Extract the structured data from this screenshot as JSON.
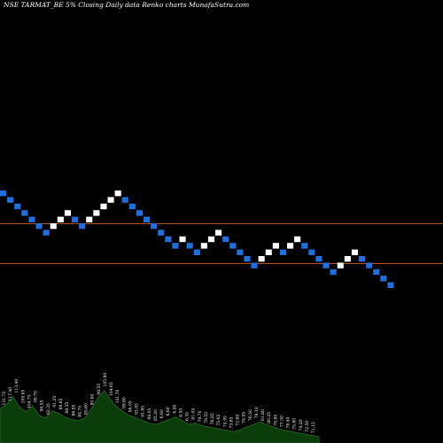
{
  "title": "NSE TARMAT_BE 5% Closing Daily data Renko charts MunafaSutra.com",
  "chart_data": {
    "type": "renko",
    "brick_percent": 5,
    "colors": {
      "background": "#000000",
      "up_brick": "#ffffff",
      "down_brick": "#1e6fe0",
      "reference_line": "#b4531e",
      "volume_fill": "#0a3d0a",
      "label_text": "#ffffff"
    },
    "reference_lines": [
      0.505,
      0.595
    ],
    "bricks": [
      {
        "dir": "down",
        "level": 0
      },
      {
        "dir": "down",
        "level": 1
      },
      {
        "dir": "down",
        "level": 2
      },
      {
        "dir": "down",
        "level": 3
      },
      {
        "dir": "down",
        "level": 4
      },
      {
        "dir": "down",
        "level": 5
      },
      {
        "dir": "down",
        "level": 6
      },
      {
        "dir": "up",
        "level": 5
      },
      {
        "dir": "up",
        "level": 4
      },
      {
        "dir": "up",
        "level": 3
      },
      {
        "dir": "down",
        "level": 4
      },
      {
        "dir": "down",
        "level": 5
      },
      {
        "dir": "up",
        "level": 4
      },
      {
        "dir": "up",
        "level": 3
      },
      {
        "dir": "up",
        "level": 2
      },
      {
        "dir": "up",
        "level": 1
      },
      {
        "dir": "up",
        "level": 0
      },
      {
        "dir": "down",
        "level": 1
      },
      {
        "dir": "down",
        "level": 2
      },
      {
        "dir": "down",
        "level": 3
      },
      {
        "dir": "down",
        "level": 4
      },
      {
        "dir": "down",
        "level": 5
      },
      {
        "dir": "down",
        "level": 6
      },
      {
        "dir": "down",
        "level": 7
      },
      {
        "dir": "down",
        "level": 8
      },
      {
        "dir": "up",
        "level": 7
      },
      {
        "dir": "down",
        "level": 8
      },
      {
        "dir": "down",
        "level": 9
      },
      {
        "dir": "up",
        "level": 8
      },
      {
        "dir": "up",
        "level": 7
      },
      {
        "dir": "up",
        "level": 6
      },
      {
        "dir": "down",
        "level": 7
      },
      {
        "dir": "down",
        "level": 8
      },
      {
        "dir": "down",
        "level": 9
      },
      {
        "dir": "down",
        "level": 10
      },
      {
        "dir": "down",
        "level": 11
      },
      {
        "dir": "up",
        "level": 10
      },
      {
        "dir": "up",
        "level": 9
      },
      {
        "dir": "up",
        "level": 8
      },
      {
        "dir": "down",
        "level": 9
      },
      {
        "dir": "up",
        "level": 8
      },
      {
        "dir": "up",
        "level": 7
      },
      {
        "dir": "down",
        "level": 8
      },
      {
        "dir": "down",
        "level": 9
      },
      {
        "dir": "down",
        "level": 10
      },
      {
        "dir": "down",
        "level": 11
      },
      {
        "dir": "down",
        "level": 12
      },
      {
        "dir": "up",
        "level": 11
      },
      {
        "dir": "up",
        "level": 10
      },
      {
        "dir": "up",
        "level": 9
      },
      {
        "dir": "down",
        "level": 10
      },
      {
        "dir": "down",
        "level": 11
      },
      {
        "dir": "down",
        "level": 12
      },
      {
        "dir": "down",
        "level": 13
      },
      {
        "dir": "down",
        "level": 14
      }
    ],
    "price_labels": [
      "131.75",
      "117.40",
      "113.40",
      "109.65",
      "104.75",
      "99.70",
      "96.55",
      "92.35",
      "91.25",
      "89.65",
      "88.35",
      "86.95",
      "84.75",
      "85.60",
      "90.60",
      "98.55",
      "105.80",
      "104.65",
      "101.70",
      "99.60",
      "96.05",
      "93.85",
      "91.85",
      "89.05",
      "85.20",
      "6.60",
      "6.60",
      "6.90",
      "6.55",
      "6.35",
      "81.05",
      "79.70",
      "78.55",
      "76.85",
      "75.65",
      "74.95",
      "73.85",
      "72.60",
      "74.95",
      "76.50",
      "79.10",
      "81.80",
      "80.25",
      "78.80",
      "77.30",
      "76.40",
      "75.80",
      "74.20",
      "72.50",
      "71.15"
    ],
    "volume": [
      0.55,
      0.62,
      0.75,
      0.58,
      0.5,
      0.6,
      0.45,
      0.4,
      0.52,
      0.48,
      0.42,
      0.38,
      0.36,
      0.4,
      0.55,
      0.72,
      0.85,
      0.7,
      0.58,
      0.5,
      0.44,
      0.4,
      0.36,
      0.32,
      0.3,
      0.34,
      0.38,
      0.42,
      0.36,
      0.3,
      0.32,
      0.28,
      0.26,
      0.24,
      0.22,
      0.2,
      0.18,
      0.22,
      0.26,
      0.3,
      0.34,
      0.3,
      0.26,
      0.22,
      0.2,
      0.18,
      0.16,
      0.14,
      0.12,
      0.1
    ]
  }
}
